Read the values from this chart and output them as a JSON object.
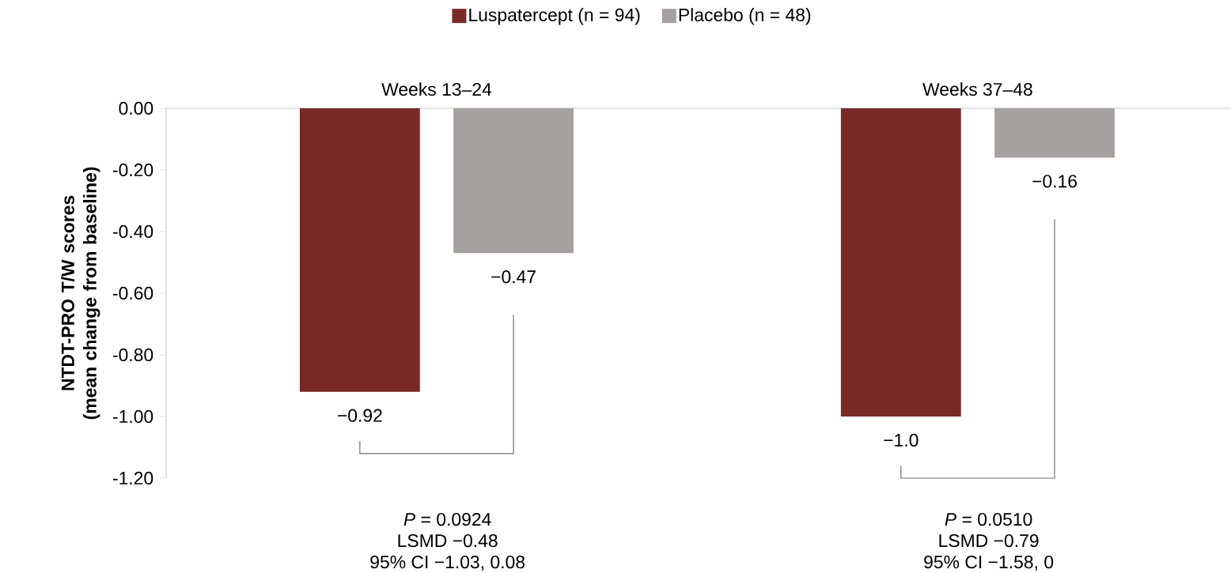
{
  "chart_data": {
    "type": "bar",
    "categories": [
      "Weeks 13–24",
      "Weeks 37–48"
    ],
    "ylabel": "NTDT-PRO T/W scores (mean change from baseline)",
    "series": [
      {
        "name": "Luspatercept (n = 94)",
        "color": "#7a2929",
        "values": [
          -0.92,
          -1.0
        ],
        "value_labels": [
          "−0.92",
          "−1.0"
        ]
      },
      {
        "name": "Placebo (n = 48)",
        "color": "#a6a1a1",
        "values": [
          -0.47,
          -0.16
        ],
        "value_labels": [
          "−0.47",
          "−0.16"
        ]
      }
    ],
    "ylim": [
      -1.2,
      0
    ],
    "yticks": [
      {
        "value": -1.2,
        "label": "-1.20"
      },
      {
        "value": -1.0,
        "label": "-1.00"
      },
      {
        "value": -0.8,
        "label": "-0.80"
      },
      {
        "value": -0.6,
        "label": "-0.60"
      },
      {
        "value": -0.4,
        "label": "-0.40"
      },
      {
        "value": -0.2,
        "label": "-0.20"
      },
      {
        "value": 0,
        "label": "0.00"
      }
    ],
    "legend": "top",
    "annotations": [
      "*P* = 0.0924",
      "LSMD −0.48",
      "95% CI −1.03, 0.08",
      "*P* = 0.0510",
      "LSMD −0.79",
      "95% CI −1.58, 0"
    ]
  }
}
